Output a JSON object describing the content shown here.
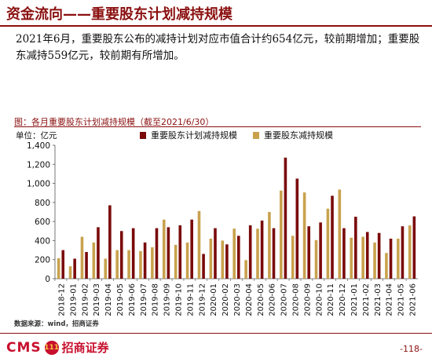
{
  "header": {
    "title": "资金流向——重要股东计划减持规模"
  },
  "summary": {
    "text": "2021年6月，重要股东公布的减持计划对应市值合计约654亿元，较前期增加；重要股东减持559亿元，较前期有所增加。"
  },
  "chart_caption": "图：各月重要股东计划减持规模（截至2021/6/30）",
  "unit_label": "单位：亿元",
  "source": "数据来源：wind，招商证券",
  "footer": {
    "logo_text": "CMS",
    "logo_badge": "111",
    "logo_cn": "招商证券",
    "page_number": "-118-"
  },
  "colors": {
    "planned": "#7a0a0a",
    "actual": "#c9a24e",
    "title": "#8b1010"
  },
  "chart_data": {
    "type": "bar",
    "categories": [
      "2018-12",
      "2019-01",
      "2019-02",
      "2019-03",
      "2019-04",
      "2019-05",
      "2019-06",
      "2019-07",
      "2019-08",
      "2019-09",
      "2019-10",
      "2019-11",
      "2019-12",
      "2020-01",
      "2020-02",
      "2020-03",
      "2020-04",
      "2020-05",
      "2020-06",
      "2020-07",
      "2020-08",
      "2020-09",
      "2020-10",
      "2020-11",
      "2020-12",
      "2021-01",
      "2021-02",
      "2021-03",
      "2021-04",
      "2021-05",
      "2021-06"
    ],
    "series": [
      {
        "name": "重要股东计划减持规模",
        "values": [
          300,
          210,
          280,
          540,
          770,
          500,
          530,
          380,
          530,
          540,
          560,
          620,
          260,
          530,
          360,
          450,
          560,
          610,
          530,
          1270,
          1050,
          550,
          590,
          870,
          530,
          650,
          490,
          480,
          420,
          550,
          654
        ]
      },
      {
        "name": "重要股东减持规模",
        "values": [
          215,
          130,
          440,
          380,
          210,
          300,
          300,
          290,
          330,
          620,
          355,
          380,
          710,
          420,
          400,
          525,
          195,
          525,
          700,
          925,
          450,
          905,
          405,
          735,
          935,
          430,
          440,
          380,
          270,
          420,
          559
        ]
      }
    ],
    "ylim": [
      0,
      1400
    ],
    "yticks": [
      0,
      200,
      400,
      600,
      800,
      1000,
      1200,
      1400
    ],
    "grid": false,
    "legend_position": "top"
  }
}
